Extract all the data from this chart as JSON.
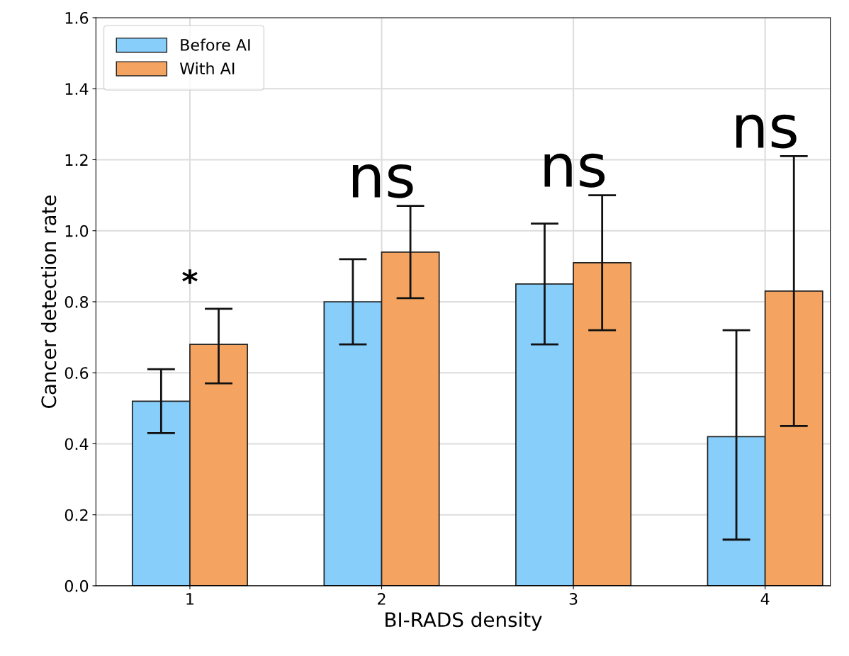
{
  "chart_data": {
    "type": "bar",
    "xlabel": "BI-RADS density",
    "ylabel": "Cancer detection rate",
    "categories": [
      "1",
      "2",
      "3",
      "4"
    ],
    "series": [
      {
        "name": "Before AI",
        "color": "#87cefa",
        "values": [
          0.52,
          0.8,
          0.85,
          0.42
        ],
        "errors": [
          [
            0.43,
            0.61
          ],
          [
            0.68,
            0.92
          ],
          [
            0.68,
            1.02
          ],
          [
            0.13,
            0.72
          ]
        ]
      },
      {
        "name": "With AI",
        "color": "#f4a460",
        "values": [
          0.68,
          0.94,
          0.91,
          0.83
        ],
        "errors": [
          [
            0.57,
            0.78
          ],
          [
            0.81,
            1.07
          ],
          [
            0.72,
            1.1
          ],
          [
            0.45,
            1.21
          ]
        ]
      }
    ],
    "ylim": [
      0,
      1.6
    ],
    "yticks": [
      {
        "value": 0,
        "label": "0.0"
      },
      0.2,
      0.4,
      0.6,
      0.8,
      {
        "value": 1.0,
        "label": "1.0"
      },
      1.2,
      1.4,
      1.6
    ],
    "annotations": [
      "*",
      "ns",
      "ns",
      "ns"
    ],
    "grid": true,
    "legend": "top left"
  }
}
